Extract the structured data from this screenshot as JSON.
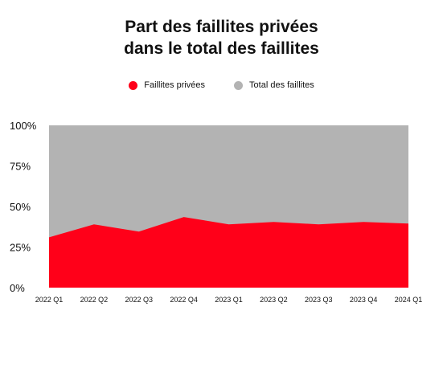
{
  "chart_data": {
    "type": "area",
    "title_line1": "Part des faillites privées",
    "title_line2": "dans le total des faillites",
    "categories": [
      "2022 Q1",
      "2022 Q2",
      "2022 Q3",
      "2022 Q4",
      "2023 Q1",
      "2023 Q2",
      "2023 Q3",
      "2023 Q4",
      "2024 Q1"
    ],
    "yticks": [
      "0%",
      "25%",
      "50%",
      "75%",
      "100%"
    ],
    "ylim": [
      0,
      100
    ],
    "series": [
      {
        "name": "Faillites privées",
        "color": "#ff0019",
        "values": [
          31,
          39,
          34.5,
          43.5,
          39,
          40.5,
          39,
          40.5,
          39.5
        ]
      },
      {
        "name": "Total des faillites",
        "color": "#b3b3b3",
        "values": [
          100,
          100,
          100,
          100,
          100,
          100,
          100,
          100,
          100
        ]
      }
    ],
    "legend_position": "top-center",
    "grid": false
  }
}
